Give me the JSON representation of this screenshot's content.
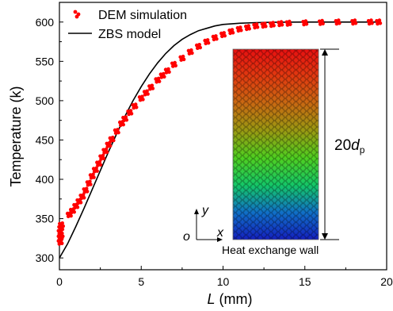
{
  "chart_data": {
    "type": "scatter",
    "title": "",
    "xlabel": "L (mm)",
    "xlabel_italic_part": "L",
    "xlabel_unit": " (mm)",
    "ylabel": "Temperature (k)",
    "xlim": [
      0,
      20
    ],
    "ylim": [
      285,
      625
    ],
    "x_ticks": [
      0,
      5,
      10,
      15,
      20
    ],
    "y_ticks": [
      300,
      350,
      400,
      450,
      500,
      550,
      600
    ],
    "grid": false,
    "legend_position": "top-left",
    "series": [
      {
        "name": "DEM simulation",
        "kind": "scatter",
        "color": "#ff0000",
        "points": [
          [
            0.05,
            320
          ],
          [
            0.05,
            326
          ],
          [
            0.05,
            333
          ],
          [
            0.08,
            338
          ],
          [
            0.1,
            329
          ],
          [
            0.12,
            342
          ],
          [
            0.6,
            355
          ],
          [
            0.8,
            360
          ],
          [
            1.0,
            366
          ],
          [
            1.2,
            372
          ],
          [
            1.4,
            378
          ],
          [
            1.6,
            386
          ],
          [
            1.8,
            395
          ],
          [
            2.0,
            404
          ],
          [
            2.2,
            412
          ],
          [
            2.4,
            420
          ],
          [
            2.6,
            428
          ],
          [
            2.8,
            436
          ],
          [
            3.0,
            444
          ],
          [
            3.2,
            451
          ],
          [
            3.5,
            461
          ],
          [
            3.8,
            471
          ],
          [
            4.0,
            477
          ],
          [
            4.3,
            485
          ],
          [
            4.6,
            493
          ],
          [
            5.0,
            503
          ],
          [
            5.3,
            510
          ],
          [
            5.6,
            517
          ],
          [
            6.0,
            526
          ],
          [
            6.3,
            532
          ],
          [
            6.6,
            538
          ],
          [
            7.0,
            546
          ],
          [
            7.5,
            554
          ],
          [
            8.0,
            562
          ],
          [
            8.5,
            569
          ],
          [
            9.0,
            575
          ],
          [
            9.5,
            580
          ],
          [
            10.0,
            584
          ],
          [
            10.5,
            588
          ],
          [
            11.0,
            591
          ],
          [
            11.5,
            593
          ],
          [
            12.0,
            595
          ],
          [
            12.5,
            596
          ],
          [
            13.0,
            597
          ],
          [
            13.5,
            598
          ],
          [
            14.0,
            598.5
          ],
          [
            15.0,
            599
          ],
          [
            16.0,
            599.5
          ],
          [
            17.0,
            600
          ],
          [
            18.0,
            600
          ],
          [
            19.0,
            600
          ],
          [
            19.5,
            600
          ]
        ]
      },
      {
        "name": "ZBS model",
        "kind": "line",
        "color": "#000000",
        "points": [
          [
            0,
            300
          ],
          [
            0.5,
            318
          ],
          [
            1.0,
            340
          ],
          [
            1.5,
            363
          ],
          [
            2.0,
            387
          ],
          [
            2.5,
            411
          ],
          [
            3.0,
            435
          ],
          [
            3.5,
            458
          ],
          [
            4.0,
            480
          ],
          [
            4.5,
            500
          ],
          [
            5.0,
            518
          ],
          [
            5.5,
            534
          ],
          [
            6.0,
            548
          ],
          [
            6.5,
            560
          ],
          [
            7.0,
            570
          ],
          [
            7.5,
            578
          ],
          [
            8.0,
            584
          ],
          [
            8.5,
            589
          ],
          [
            9.0,
            592
          ],
          [
            9.5,
            595
          ],
          [
            10.0,
            597
          ],
          [
            11.0,
            598.5
          ],
          [
            12.0,
            599.3
          ],
          [
            13.0,
            599.7
          ],
          [
            15.0,
            600
          ],
          [
            17.0,
            600
          ],
          [
            19.5,
            600
          ]
        ]
      }
    ],
    "inset": {
      "dimension_label": "20",
      "dimension_italic": "d",
      "dimension_subscript": "p",
      "axis_y_label": "y",
      "axis_x_label": "x",
      "origin_label": "o",
      "wall_label": "Heat exchange wall",
      "gradient_colors": [
        "#e81010",
        "#e23a10",
        "#c96a12",
        "#9a9a12",
        "#4fd020",
        "#14c868",
        "#1070c8",
        "#1420c0"
      ]
    }
  }
}
